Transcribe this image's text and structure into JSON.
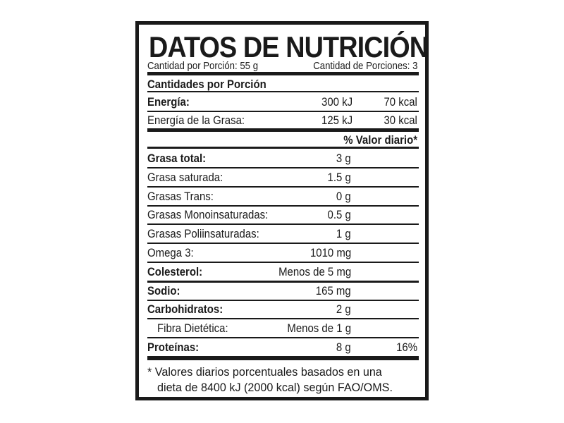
{
  "title": "DATOS DE NUTRICIÓN",
  "serving_size": "Cantidad por Porción: 55 g",
  "servings": "Cantidad de Porciones: 3",
  "section_heading": "Cantidades por Porción",
  "energy": [
    {
      "label": "Energía:",
      "kj": "300 kJ",
      "kcal": "70 kcal",
      "bold": true
    },
    {
      "label": "Energía de la Grasa:",
      "kj": "125 kJ",
      "kcal": "30 kcal",
      "bold": false
    }
  ],
  "dv_heading": "% Valor diario*",
  "nutrients": [
    {
      "label": "Grasa total:",
      "value": "3 g",
      "dv": "",
      "bold": true
    },
    {
      "label": "Grasa saturada:",
      "value": "1.5 g",
      "dv": "",
      "bold": false
    },
    {
      "label": "Grasas Trans:",
      "value": "0 g",
      "dv": "",
      "bold": false
    },
    {
      "label": "Grasas Monoinsaturadas:",
      "value": "0.5 g",
      "dv": "",
      "bold": false
    },
    {
      "label": "Grasas Poliinsaturadas:",
      "value": "1 g",
      "dv": "",
      "bold": false
    },
    {
      "label": "Omega 3:",
      "value": "1010 mg",
      "dv": "",
      "bold": false
    },
    {
      "label": "Colesterol:",
      "value": "Menos de 5 mg",
      "dv": "",
      "bold": true
    },
    {
      "label": "Sodio:",
      "value": "165 mg",
      "dv": "",
      "bold": true
    },
    {
      "label": "Carbohidratos:",
      "value": "2 g",
      "dv": "",
      "bold": true
    },
    {
      "label": "Fibra Dietética:",
      "value": "Menos de 1 g",
      "dv": "",
      "bold": false,
      "indent": true
    },
    {
      "label": "Proteínas:",
      "value": "8 g",
      "dv": "16%",
      "bold": true
    }
  ],
  "footnote": {
    "line1": "* Valores diarios porcentuales basados en una",
    "line2": "dieta de 8400 kJ (2000 kcal) según FAO/OMS."
  }
}
